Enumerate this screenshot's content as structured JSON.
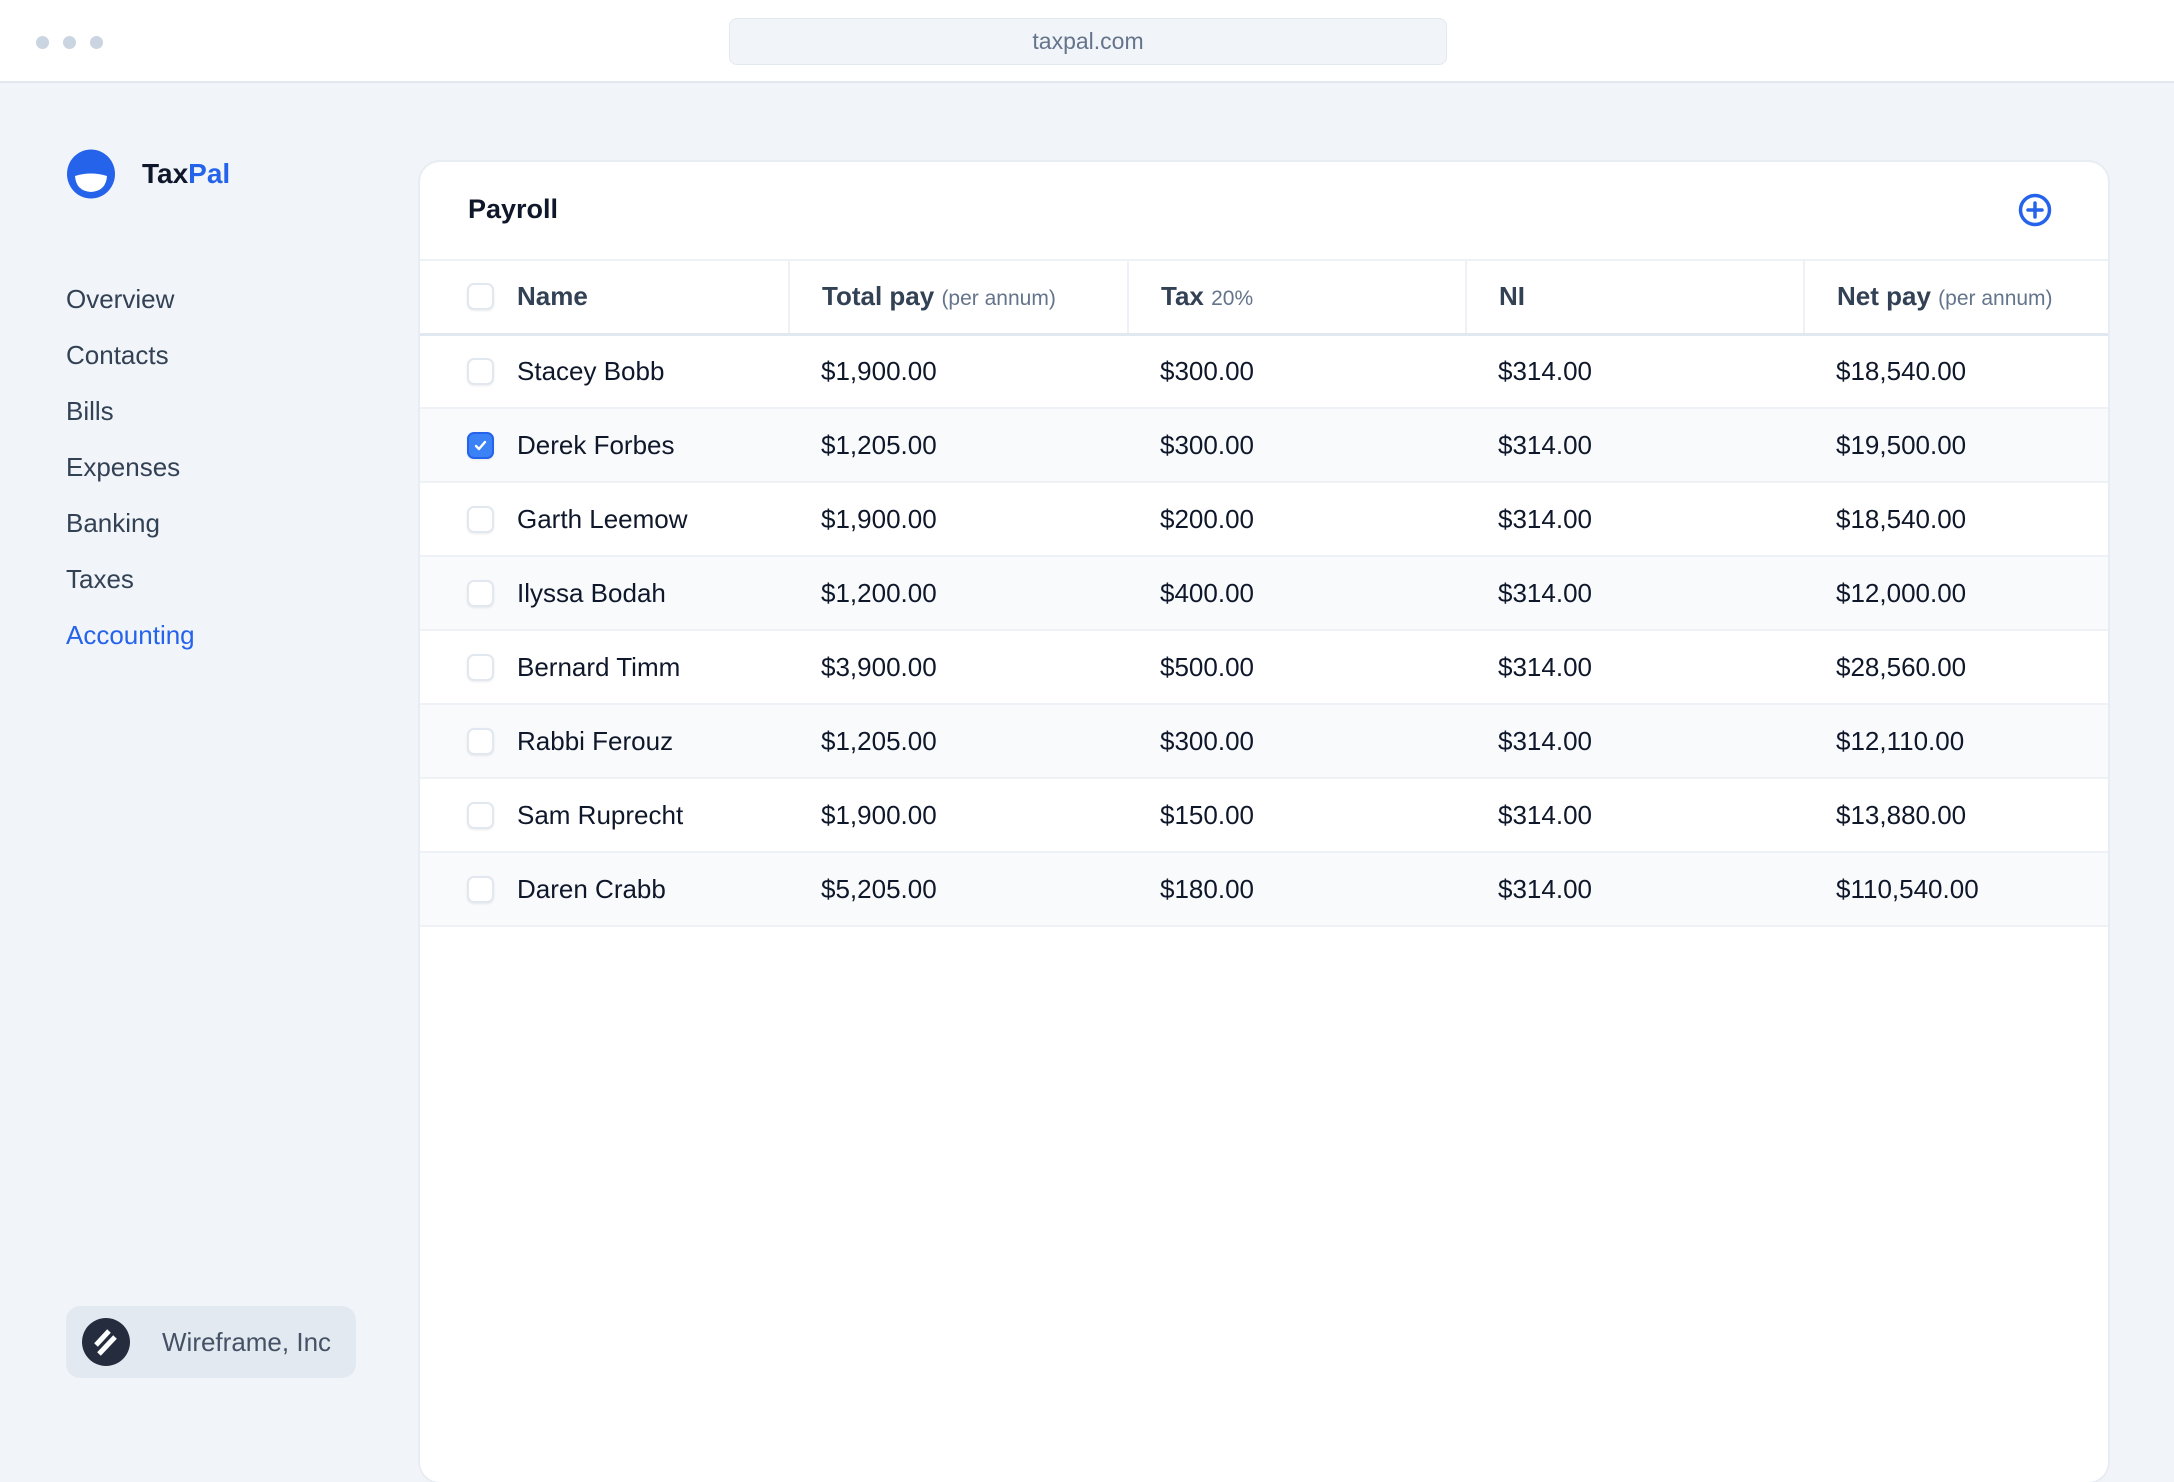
{
  "browser": {
    "url": "taxpal.com"
  },
  "brand": {
    "part1": "Tax",
    "part2": "Pal",
    "accent": "#2563eb"
  },
  "sidebar": {
    "items": [
      {
        "label": "Overview",
        "active": false
      },
      {
        "label": "Contacts",
        "active": false
      },
      {
        "label": "Bills",
        "active": false
      },
      {
        "label": "Expenses",
        "active": false
      },
      {
        "label": "Banking",
        "active": false
      },
      {
        "label": "Taxes",
        "active": false
      },
      {
        "label": "Accounting",
        "active": true
      }
    ],
    "org": {
      "name": "Wireframe, Inc",
      "icon": "wireframe-logo-icon"
    }
  },
  "main": {
    "title": "Payroll",
    "add_icon": "plus-circle-icon",
    "columns": [
      {
        "label": "Name",
        "sub": ""
      },
      {
        "label": "Total pay",
        "sub": "(per annum)"
      },
      {
        "label": "Tax",
        "sub": "20%"
      },
      {
        "label": "NI",
        "sub": ""
      },
      {
        "label": "Net pay",
        "sub": "(per annum)"
      }
    ],
    "rows": [
      {
        "name": "Stacey Bobb",
        "total": "$1,900.00",
        "tax": "$300.00",
        "ni": "$314.00",
        "net": "$18,540.00",
        "checked": false
      },
      {
        "name": "Derek Forbes",
        "total": "$1,205.00",
        "tax": "$300.00",
        "ni": "$314.00",
        "net": "$19,500.00",
        "checked": true
      },
      {
        "name": "Garth Leemow",
        "total": "$1,900.00",
        "tax": "$200.00",
        "ni": "$314.00",
        "net": "$18,540.00",
        "checked": false
      },
      {
        "name": "Ilyssa Bodah",
        "total": "$1,200.00",
        "tax": "$400.00",
        "ni": "$314.00",
        "net": "$12,000.00",
        "checked": false
      },
      {
        "name": "Bernard Timm",
        "total": "$3,900.00",
        "tax": "$500.00",
        "ni": "$314.00",
        "net": "$28,560.00",
        "checked": false
      },
      {
        "name": "Rabbi Ferouz",
        "total": "$1,205.00",
        "tax": "$300.00",
        "ni": "$314.00",
        "net": "$12,110.00",
        "checked": false
      },
      {
        "name": "Sam Ruprecht",
        "total": "$1,900.00",
        "tax": "$150.00",
        "ni": "$314.00",
        "net": "$13,880.00",
        "checked": false
      },
      {
        "name": "Daren Crabb",
        "total": "$5,205.00",
        "tax": "$180.00",
        "ni": "$314.00",
        "net": "$110,540.00",
        "checked": false
      }
    ]
  }
}
